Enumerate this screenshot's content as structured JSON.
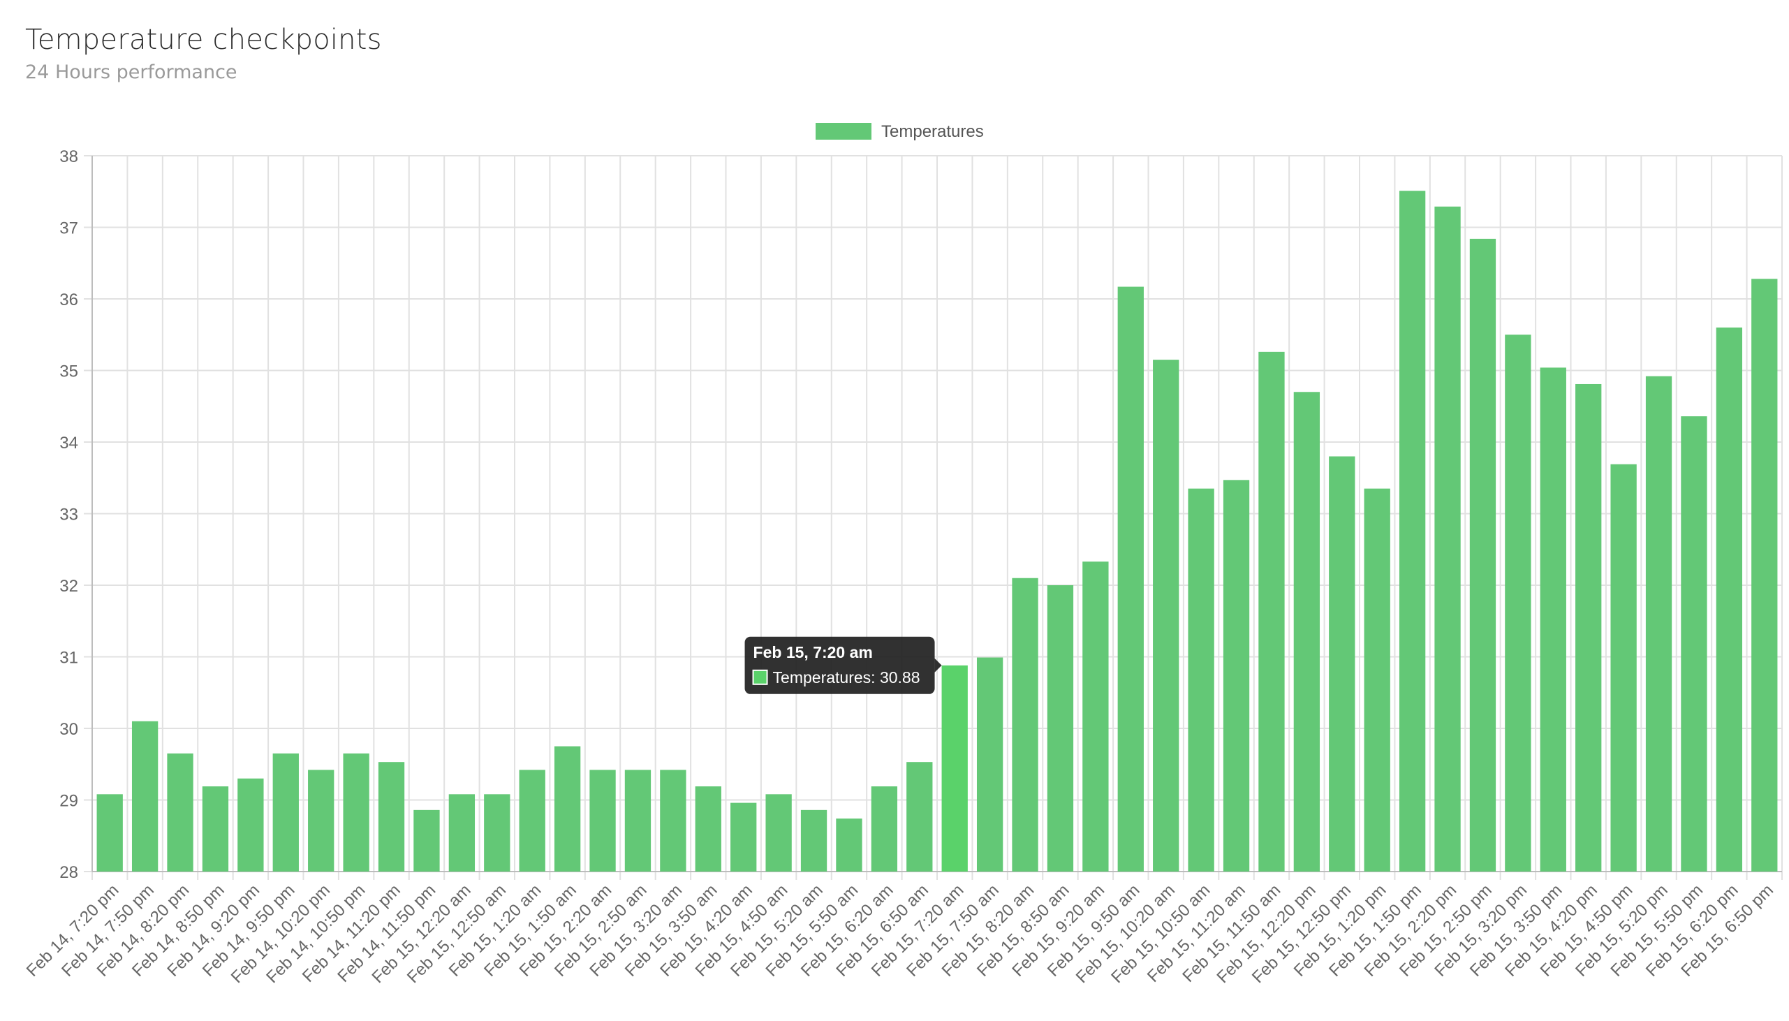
{
  "header": {
    "title": "Temperature checkpoints",
    "subtitle": "24 Hours performance"
  },
  "tooltip": {
    "title": "Feb 15, 7:20 am",
    "label": "Temperatures: 30.88",
    "category_index": 24
  },
  "colors": {
    "bar": "#63c876",
    "bar_active": "#5ad26a",
    "grid": "#e1e1e1",
    "axis_text": "#666666",
    "tooltip_bg": "#1f1f1f"
  },
  "chart_data": {
    "type": "bar",
    "categories": [
      "Feb 14, 7:20 pm",
      "Feb 14, 7:50 pm",
      "Feb 14, 8:20 pm",
      "Feb 14, 8:50 pm",
      "Feb 14, 9:20 pm",
      "Feb 14, 9:50 pm",
      "Feb 14, 10:20 pm",
      "Feb 14, 10:50 pm",
      "Feb 14, 11:20 pm",
      "Feb 14, 11:50 pm",
      "Feb 15, 12:20 am",
      "Feb 15, 12:50 am",
      "Feb 15, 1:20 am",
      "Feb 15, 1:50 am",
      "Feb 15, 2:20 am",
      "Feb 15, 2:50 am",
      "Feb 15, 3:20 am",
      "Feb 15, 3:50 am",
      "Feb 15, 4:20 am",
      "Feb 15, 4:50 am",
      "Feb 15, 5:20 am",
      "Feb 15, 5:50 am",
      "Feb 15, 6:20 am",
      "Feb 15, 6:50 am",
      "Feb 15, 7:20 am",
      "Feb 15, 7:50 am",
      "Feb 15, 8:20 am",
      "Feb 15, 8:50 am",
      "Feb 15, 9:20 am",
      "Feb 15, 9:50 am",
      "Feb 15, 10:20 am",
      "Feb 15, 10:50 am",
      "Feb 15, 11:20 am",
      "Feb 15, 11:50 am",
      "Feb 15, 12:20 pm",
      "Feb 15, 12:50 pm",
      "Feb 15, 1:20 pm",
      "Feb 15, 1:50 pm",
      "Feb 15, 2:20 pm",
      "Feb 15, 2:50 pm",
      "Feb 15, 3:20 pm",
      "Feb 15, 3:50 pm",
      "Feb 15, 4:20 pm",
      "Feb 15, 4:50 pm",
      "Feb 15, 5:20 pm",
      "Feb 15, 5:50 pm",
      "Feb 15, 6:20 pm",
      "Feb 15, 6:50 pm"
    ],
    "series": [
      {
        "name": "Temperatures",
        "values": [
          29.08,
          30.1,
          29.65,
          29.19,
          29.3,
          29.65,
          29.42,
          29.65,
          29.53,
          28.86,
          29.08,
          29.08,
          29.42,
          29.75,
          29.42,
          29.42,
          29.42,
          29.19,
          28.96,
          29.08,
          28.86,
          28.74,
          29.19,
          29.53,
          30.88,
          30.99,
          32.1,
          32.0,
          32.33,
          36.17,
          35.15,
          33.35,
          33.47,
          35.26,
          34.7,
          33.8,
          33.35,
          37.51,
          37.29,
          36.84,
          35.5,
          35.04,
          34.81,
          33.69,
          34.92,
          34.36,
          35.6,
          36.28
        ]
      }
    ],
    "ylim": [
      28,
      38
    ],
    "yticks": [
      28,
      29,
      30,
      31,
      32,
      33,
      34,
      35,
      36,
      37,
      38
    ],
    "grid": true,
    "legend": "top-center"
  }
}
